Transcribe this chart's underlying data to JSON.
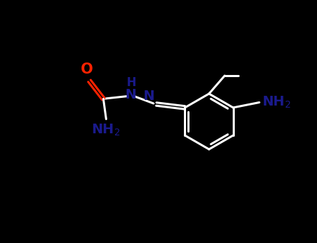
{
  "background_color": "#000000",
  "bond_color": "#ffffff",
  "O_color": "#ff2200",
  "N_color": "#1a1a8c",
  "figsize": [
    4.55,
    3.5
  ],
  "dpi": 100,
  "xlim": [
    0,
    9.1
  ],
  "ylim": [
    0,
    7.0
  ]
}
